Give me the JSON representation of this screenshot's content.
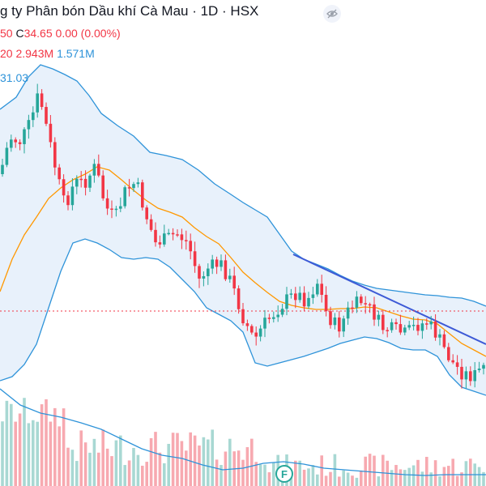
{
  "header": {
    "title": "g ty Phân bón Dầu khí Cà Mau · 1D · HSX",
    "ohlc_prefix": "50",
    "close_label": "C",
    "close_value": "34.65",
    "change": "0.00 (0.00%)",
    "vol_prefix": "20",
    "vol_value": "2.943M",
    "vol_ma_value": "1.571M",
    "bb_value": "31.03"
  },
  "colors": {
    "up": "#26a69a",
    "down": "#f23645",
    "band_line": "#2e93d9",
    "band_fill": "#e8f1fb",
    "basis": "#ff9800",
    "trendline": "#3d5ad6",
    "price_line": "#f23645"
  },
  "icons": {
    "visibility": "eye-off-icon",
    "marker": "f-marker-icon"
  },
  "marker": {
    "label": "F"
  }
}
